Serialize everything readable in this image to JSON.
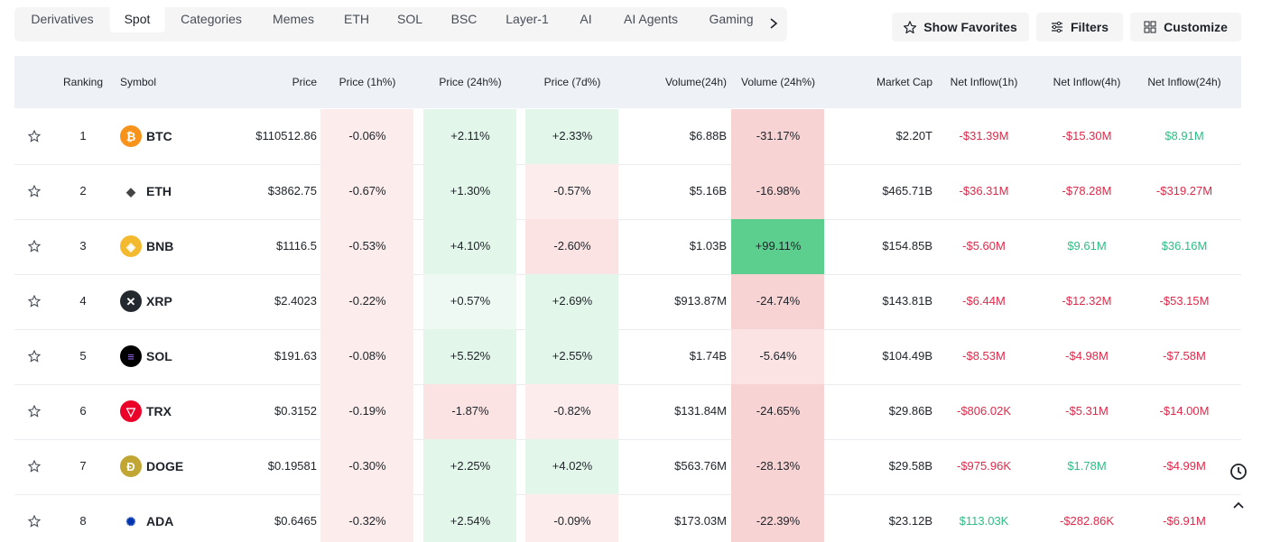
{
  "tabs": [
    "Derivatives",
    "Spot",
    "Categories",
    "Memes",
    "ETH",
    "SOL",
    "BSC",
    "Layer-1",
    "AI",
    "AI Agents",
    "Gaming"
  ],
  "buttons": [
    "Show Favorites",
    "Filters",
    "Customize"
  ],
  "table": {
    "headers": [
      "Ranking",
      "Symbol",
      "Price",
      "Price (1h%)",
      "Price (24h%)",
      "Price (7d%)",
      "Volume(24h)",
      "Volume (24h%)",
      "Market Cap",
      "Net Inflow(1h)",
      "Net Inflow(4h)",
      "Net Inflow(24h)"
    ],
    "rows": [
      [
        "1",
        "BTC",
        "$110512.86",
        "-0.06%",
        "+2.11%",
        "+2.33%",
        "$6.88B",
        "-31.17%",
        "$2.20T",
        "-$31.39M",
        "-$15.30M",
        "$8.91M"
      ],
      [
        "2",
        "ETH",
        "$3862.75",
        "-0.67%",
        "+1.30%",
        "-0.57%",
        "$5.16B",
        "-16.98%",
        "$465.71B",
        "-$36.31M",
        "-$78.28M",
        "-$319.27M"
      ],
      [
        "3",
        "BNB",
        "$1116.5",
        "-0.53%",
        "+4.10%",
        "-2.60%",
        "$1.03B",
        "+99.11%",
        "$154.85B",
        "-$5.60M",
        "$9.61M",
        "$36.16M"
      ],
      [
        "4",
        "XRP",
        "$2.4023",
        "-0.22%",
        "+0.57%",
        "+2.69%",
        "$913.87M",
        "-24.74%",
        "$143.81B",
        "-$6.44M",
        "-$12.32M",
        "-$53.15M"
      ],
      [
        "5",
        "SOL",
        "$191.63",
        "-0.08%",
        "+5.52%",
        "+2.55%",
        "$1.74B",
        "-5.64%",
        "$104.49B",
        "-$8.53M",
        "-$4.98M",
        "-$7.58M"
      ],
      [
        "6",
        "TRX",
        "$0.3152",
        "-0.19%",
        "-1.87%",
        "-0.82%",
        "$131.84M",
        "-24.65%",
        "$29.86B",
        "-$806.02K",
        "-$5.31M",
        "-$14.00M"
      ],
      [
        "7",
        "DOGE",
        "$0.19581",
        "-0.30%",
        "+2.25%",
        "+4.02%",
        "$563.76M",
        "-28.13%",
        "$29.58B",
        "-$975.96K",
        "$1.78M",
        "-$4.99M"
      ],
      [
        "8",
        "ADA",
        "$0.6465",
        "-0.32%",
        "+2.54%",
        "-0.09%",
        "$173.03M",
        "-22.39%",
        "$23.12B",
        "$113.03K",
        "-$282.86K",
        "-$6.91M"
      ]
    ]
  }
}
